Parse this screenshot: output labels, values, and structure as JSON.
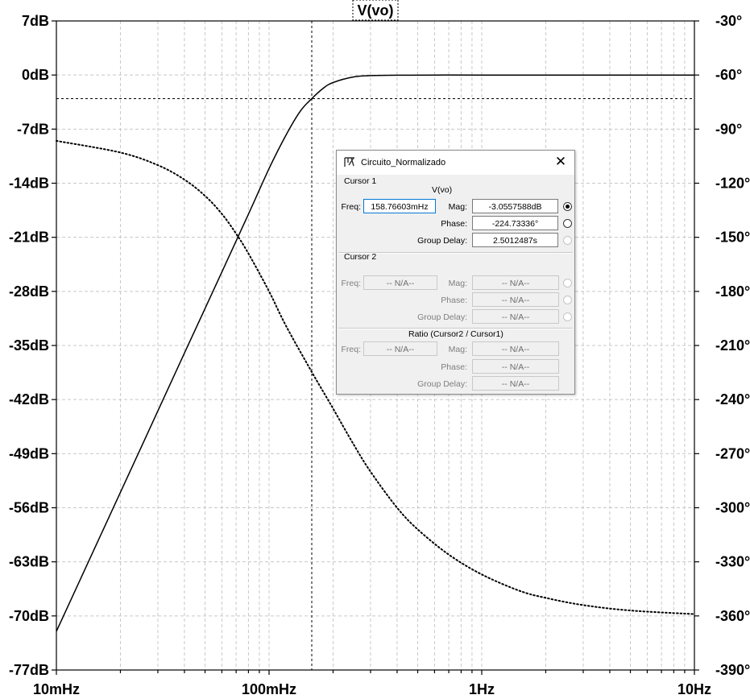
{
  "chart_data": {
    "type": "line",
    "title": "V(vo)",
    "x_scale": "log",
    "xlim_hz": [
      0.01,
      10
    ],
    "x_tick_labels": [
      "10mHz",
      "100mHz",
      "1Hz",
      "10Hz"
    ],
    "ylim_db": [
      -77,
      7
    ],
    "y_left_tick_labels": [
      "7dB",
      "0dB",
      "-7dB",
      "-14dB",
      "-21dB",
      "-28dB",
      "-35dB",
      "-42dB",
      "-49dB",
      "-56dB",
      "-63dB",
      "-70dB",
      "-77dB"
    ],
    "ylim_deg": [
      -390,
      -30
    ],
    "y_right_tick_labels": [
      "-30°",
      "-60°",
      "-90°",
      "-120°",
      "-150°",
      "-180°",
      "-210°",
      "-240°",
      "-270°",
      "-300°",
      "-330°",
      "-360°",
      "-390°"
    ],
    "grid": true,
    "series": [
      {
        "style": "solid",
        "axis": "left",
        "unit": "dB",
        "description_key": "magnitude",
        "points": [
          [
            0.01,
            -72.0
          ],
          [
            0.02,
            -54.0
          ],
          [
            0.04,
            -36.0
          ],
          [
            0.06,
            -25.5
          ],
          [
            0.08,
            -18.0
          ],
          [
            0.1,
            -12.1
          ],
          [
            0.12,
            -7.8
          ],
          [
            0.14,
            -4.7
          ],
          [
            0.1588,
            -3.06
          ],
          [
            0.18,
            -1.7
          ],
          [
            0.2,
            -0.97
          ],
          [
            0.25,
            -0.24
          ],
          [
            0.3,
            -0.08
          ],
          [
            0.4,
            -0.02
          ],
          [
            0.6,
            0.0
          ],
          [
            1,
            0.0
          ],
          [
            3,
            0.0
          ],
          [
            10,
            0.0
          ]
        ]
      },
      {
        "style": "dotted",
        "axis": "right",
        "unit": "deg",
        "description_key": "phase",
        "points": [
          [
            0.01,
            -96.5
          ],
          [
            0.02,
            -103
          ],
          [
            0.03,
            -110
          ],
          [
            0.04,
            -118
          ],
          [
            0.05,
            -127
          ],
          [
            0.06,
            -137
          ],
          [
            0.07,
            -148
          ],
          [
            0.08,
            -159
          ],
          [
            0.1,
            -180
          ],
          [
            0.12,
            -199
          ],
          [
            0.1588,
            -224.7
          ],
          [
            0.2,
            -245
          ],
          [
            0.25,
            -265
          ],
          [
            0.3,
            -280
          ],
          [
            0.4,
            -300
          ],
          [
            0.5,
            -312
          ],
          [
            0.7,
            -326
          ],
          [
            1,
            -337
          ],
          [
            1.5,
            -346
          ],
          [
            2,
            -350
          ],
          [
            3,
            -354
          ],
          [
            5,
            -357
          ],
          [
            10,
            -359
          ]
        ]
      }
    ],
    "cursor": {
      "freq_hz": 0.15876603,
      "mag_db": -3.0557588
    }
  },
  "cursor_dialog": {
    "window_title": "Circuito_Normalizado",
    "close_glyph": "✕",
    "cursor1": {
      "header": "Cursor 1",
      "trace": "V(vo)",
      "freq_label": "Freq:",
      "freq_value": "158.76603mHz",
      "mag_label": "Mag:",
      "mag_value": "-3.0557588dB",
      "phase_label": "Phase:",
      "phase_value": "-224.73336°",
      "group_delay_label": "Group Delay:",
      "group_delay_value": "2.5012487s"
    },
    "cursor2": {
      "header": "Cursor 2",
      "freq_label": "Freq:",
      "freq_value": "-- N/A--",
      "mag_label": "Mag:",
      "mag_value": "-- N/A--",
      "phase_label": "Phase:",
      "phase_value": "-- N/A--",
      "group_delay_label": "Group Delay:",
      "group_delay_value": "-- N/A--"
    },
    "ratio": {
      "header": "Ratio (Cursor2 / Cursor1)",
      "freq_label": "Freq:",
      "freq_value": "-- N/A--",
      "mag_label": "Mag:",
      "mag_value": "-- N/A--",
      "phase_label": "Phase:",
      "phase_value": "-- N/A--",
      "group_delay_label": "Group Delay:",
      "group_delay_value": "-- N/A--"
    },
    "selected_radio": "mag"
  }
}
